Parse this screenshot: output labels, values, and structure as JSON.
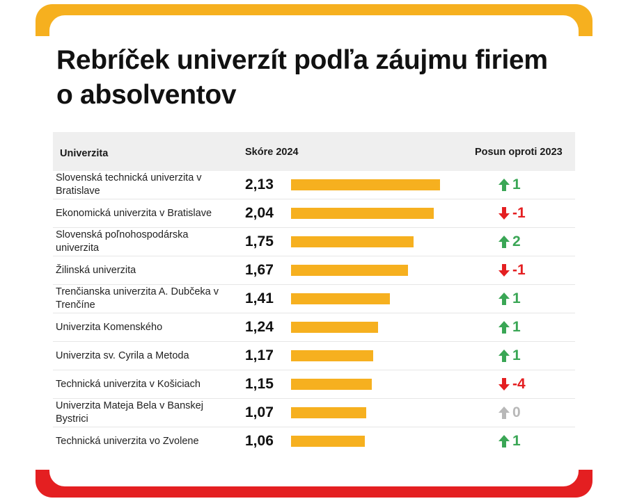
{
  "title": "Rebríček univerzít podľa záujmu firiem o absolventov",
  "colors": {
    "bar": "#f6b01f",
    "up": "#3aa655",
    "down": "#e41f21",
    "neutral": "#b8b8b8"
  },
  "table": {
    "headers": {
      "name": "Univerzita",
      "score": "Skóre 2024",
      "shift": "Posun oproti 2023"
    },
    "rows": [
      {
        "name": "Slovenská technická univerzita v Bratislave",
        "score": "2,13",
        "shift": "1",
        "dir": "up"
      },
      {
        "name": "Ekonomická univerzita v Bratislave",
        "score": "2,04",
        "shift": "-1",
        "dir": "down"
      },
      {
        "name": "Slovenská poľnohospodárska univerzita",
        "score": "1,75",
        "shift": "2",
        "dir": "up"
      },
      {
        "name": "Žilinská univerzita",
        "score": "1,67",
        "shift": "-1",
        "dir": "down"
      },
      {
        "name": "Trenčianska univerzita A. Dubčeka v Trenčíne",
        "score": "1,41",
        "shift": "1",
        "dir": "up"
      },
      {
        "name": "Univerzita Komenského",
        "score": "1,24",
        "shift": "1",
        "dir": "up"
      },
      {
        "name": "Univerzita sv. Cyrila a Metoda",
        "score": "1,17",
        "shift": "1",
        "dir": "up"
      },
      {
        "name": "Technická univerzita v Košiciach",
        "score": "1,15",
        "shift": "-4",
        "dir": "down"
      },
      {
        "name": "Univerzita Mateja Bela v Banskej Bystrici",
        "score": "1,07",
        "shift": "0",
        "dir": "neutral"
      },
      {
        "name": "Technická univerzita vo Zvolene",
        "score": "1,06",
        "shift": "1",
        "dir": "up"
      }
    ]
  },
  "chart_data": {
    "type": "bar",
    "title": "Rebríček univerzít podľa záujmu firiem o absolventov",
    "categories": [
      "Slovenská technická univerzita v Bratislave",
      "Ekonomická univerzita v Bratislave",
      "Slovenská poľnohospodárska univerzita",
      "Žilinská univerzita",
      "Trenčianska univerzita A. Dubčeka v Trenčíne",
      "Univerzita Komenského",
      "Univerzita sv. Cyrila a Metoda",
      "Technická univerzita v Košiciach",
      "Univerzita Mateja Bela v Banskej Bystrici",
      "Technická univerzita vo Zvolene"
    ],
    "values": [
      2.13,
      2.04,
      1.75,
      1.67,
      1.41,
      1.24,
      1.17,
      1.15,
      1.07,
      1.06
    ],
    "shift_vs_2023": [
      1,
      -1,
      2,
      -1,
      1,
      1,
      1,
      -4,
      0,
      1
    ],
    "xlabel": "Skóre 2024",
    "ylabel": "Univerzita",
    "orientation": "horizontal",
    "xlim": [
      0,
      2.13
    ]
  }
}
